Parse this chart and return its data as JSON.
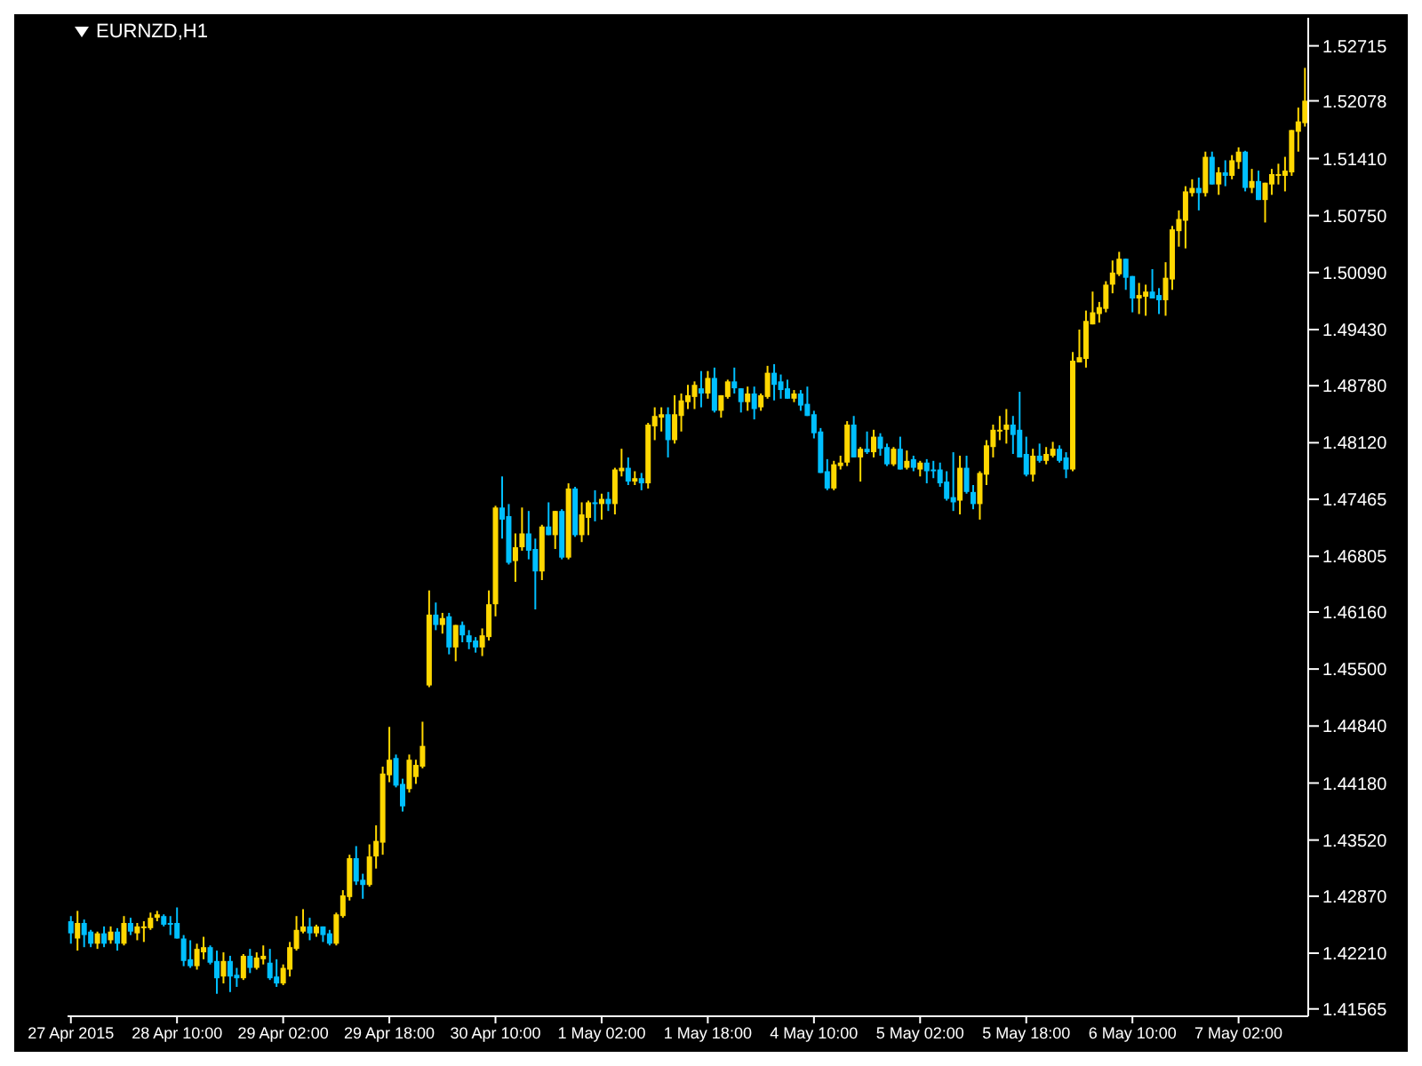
{
  "chart_data": {
    "type": "candlestick",
    "title": "EURNZD,H1",
    "categories": [
      "27 Apr 2015",
      null,
      null,
      null,
      null,
      null,
      null,
      null,
      null,
      null,
      null,
      null,
      null,
      null,
      null,
      null,
      "28 Apr 10:00",
      null,
      null,
      null,
      null,
      null,
      null,
      null,
      null,
      null,
      null,
      null,
      null,
      null,
      null,
      null,
      "29 Apr 02:00",
      null,
      null,
      null,
      null,
      null,
      null,
      null,
      null,
      null,
      null,
      null,
      null,
      null,
      null,
      null,
      "29 Apr 18:00",
      null,
      null,
      null,
      null,
      null,
      null,
      null,
      null,
      null,
      null,
      null,
      null,
      null,
      null,
      null,
      "30 Apr 10:00",
      null,
      null,
      null,
      null,
      null,
      null,
      null,
      null,
      null,
      null,
      null,
      null,
      null,
      null,
      null,
      "1 May 02:00",
      null,
      null,
      null,
      null,
      null,
      null,
      null,
      null,
      null,
      null,
      null,
      null,
      null,
      null,
      null,
      "1 May 18:00",
      null,
      null,
      null,
      null,
      null,
      null,
      null,
      null,
      null,
      null,
      null,
      null,
      null,
      null,
      null,
      "4 May 10:00",
      null,
      null,
      null,
      null,
      null,
      null,
      null,
      null,
      null,
      null,
      null,
      null,
      null,
      null,
      null,
      "5 May 02:00",
      null,
      null,
      null,
      null,
      null,
      null,
      null,
      null,
      null,
      null,
      null,
      null,
      null,
      null,
      null,
      "5 May 18:00",
      null,
      null,
      null,
      null,
      null,
      null,
      null,
      null,
      null,
      null,
      null,
      null,
      null,
      null,
      null,
      "6 May 10:00",
      null,
      null,
      null,
      null,
      null,
      null,
      null,
      null,
      null,
      null,
      null,
      null,
      null,
      null,
      null,
      "7 May 02:00",
      null,
      null,
      null,
      null,
      null,
      null,
      null,
      null,
      null,
      null
    ],
    "ohlc": [
      [
        1.4258,
        1.4264,
        1.4232,
        1.4244
      ],
      [
        1.4238,
        1.427,
        1.4224,
        1.4256
      ],
      [
        1.4256,
        1.426,
        1.4228,
        1.4242
      ],
      [
        1.4246,
        1.4248,
        1.4228,
        1.4232
      ],
      [
        1.4232,
        1.4246,
        1.4226,
        1.4244
      ],
      [
        1.4244,
        1.4252,
        1.4228,
        1.4232
      ],
      [
        1.4236,
        1.4252,
        1.4232,
        1.4246
      ],
      [
        1.4246,
        1.425,
        1.4224,
        1.4232
      ],
      [
        1.4232,
        1.4264,
        1.423,
        1.4256
      ],
      [
        1.4256,
        1.4262,
        1.4242,
        1.4246
      ],
      [
        1.4244,
        1.4256,
        1.4236,
        1.4252
      ],
      [
        1.425,
        1.4258,
        1.4234,
        1.4252
      ],
      [
        1.425,
        1.4268,
        1.4248,
        1.4262
      ],
      [
        1.4262,
        1.427,
        1.4258,
        1.4266
      ],
      [
        1.4264,
        1.4266,
        1.4252,
        1.4254
      ],
      [
        1.4256,
        1.4264,
        1.4242,
        1.4254
      ],
      [
        1.4256,
        1.4274,
        1.4238,
        1.4238
      ],
      [
        1.4238,
        1.4242,
        1.4206,
        1.4212
      ],
      [
        1.4214,
        1.4236,
        1.4204,
        1.4206
      ],
      [
        1.4206,
        1.4232,
        1.4202,
        1.4226
      ],
      [
        1.4222,
        1.424,
        1.4214,
        1.4228
      ],
      [
        1.4228,
        1.423,
        1.4208,
        1.421
      ],
      [
        1.4212,
        1.4224,
        1.4174,
        1.4192
      ],
      [
        1.4194,
        1.4222,
        1.4186,
        1.4212
      ],
      [
        1.4212,
        1.4218,
        1.4176,
        1.4194
      ],
      [
        1.4196,
        1.4204,
        1.4182,
        1.4192
      ],
      [
        1.4192,
        1.422,
        1.419,
        1.4218
      ],
      [
        1.4218,
        1.4226,
        1.4198,
        1.4204
      ],
      [
        1.4204,
        1.4222,
        1.4202,
        1.4216
      ],
      [
        1.4214,
        1.423,
        1.4208,
        1.4218
      ],
      [
        1.421,
        1.4226,
        1.419,
        1.4192
      ],
      [
        1.4194,
        1.4214,
        1.4182,
        1.4186
      ],
      [
        1.4186,
        1.4208,
        1.4184,
        1.4204
      ],
      [
        1.4202,
        1.4234,
        1.4194,
        1.4228
      ],
      [
        1.4226,
        1.4264,
        1.4224,
        1.4248
      ],
      [
        1.4246,
        1.4272,
        1.4244,
        1.4252
      ],
      [
        1.4252,
        1.4262,
        1.4236,
        1.4244
      ],
      [
        1.4244,
        1.4254,
        1.424,
        1.4252
      ],
      [
        1.4252,
        1.4252,
        1.4234,
        1.4242
      ],
      [
        1.4244,
        1.4248,
        1.423,
        1.4232
      ],
      [
        1.4232,
        1.4268,
        1.423,
        1.4266
      ],
      [
        1.4264,
        1.4294,
        1.4262,
        1.4288
      ],
      [
        1.4286,
        1.4335,
        1.4282,
        1.4331
      ],
      [
        1.4331,
        1.4345,
        1.43,
        1.4304
      ],
      [
        1.4306,
        1.4313,
        1.4284,
        1.43
      ],
      [
        1.43,
        1.4347,
        1.4298,
        1.4333
      ],
      [
        1.4333,
        1.4369,
        1.4319,
        1.4351
      ],
      [
        1.4349,
        1.4437,
        1.4335,
        1.4429
      ],
      [
        1.4427,
        1.4483,
        1.4419,
        1.4445
      ],
      [
        1.4447,
        1.4451,
        1.4413,
        1.4415
      ],
      [
        1.4417,
        1.4423,
        1.4385,
        1.4391
      ],
      [
        1.4411,
        1.4451,
        1.4407,
        1.4445
      ],
      [
        1.4425,
        1.4445,
        1.4417,
        1.4439
      ],
      [
        1.4437,
        1.4489,
        1.4435,
        1.4461
      ],
      [
        1.4531,
        1.4641,
        1.4529,
        1.4613
      ],
      [
        1.4613,
        1.4627,
        1.4595,
        1.4601
      ],
      [
        1.4601,
        1.4615,
        1.4591,
        1.4609
      ],
      [
        1.4611,
        1.4615,
        1.4567,
        1.4575
      ],
      [
        1.4575,
        1.4601,
        1.4559,
        1.4601
      ],
      [
        1.4601,
        1.4605,
        1.4581,
        1.4589
      ],
      [
        1.4589,
        1.4595,
        1.4573,
        1.4581
      ],
      [
        1.4583,
        1.4587,
        1.4569,
        1.4575
      ],
      [
        1.4575,
        1.4597,
        1.4565,
        1.4589
      ],
      [
        1.4587,
        1.4641,
        1.4583,
        1.4625
      ],
      [
        1.4625,
        1.4739,
        1.4611,
        1.4737
      ],
      [
        1.4737,
        1.4773,
        1.4701,
        1.4723
      ],
      [
        1.4727,
        1.4741,
        1.4671,
        1.4673
      ],
      [
        1.4675,
        1.4707,
        1.4651,
        1.4691
      ],
      [
        1.4691,
        1.4737,
        1.4687,
        1.4707
      ],
      [
        1.4707,
        1.4733,
        1.4677,
        1.4687
      ],
      [
        1.4689,
        1.4701,
        1.4619,
        1.4663
      ],
      [
        1.4663,
        1.4717,
        1.4653,
        1.4715
      ],
      [
        1.4715,
        1.4743,
        1.4705,
        1.4705
      ],
      [
        1.4705,
        1.4733,
        1.4689,
        1.4733
      ],
      [
        1.4733,
        1.4735,
        1.4677,
        1.4679
      ],
      [
        1.4679,
        1.4765,
        1.4677,
        1.4759
      ],
      [
        1.4759,
        1.4761,
        1.4703,
        1.4705
      ],
      [
        1.4705,
        1.4743,
        1.4697,
        1.4729
      ],
      [
        1.4725,
        1.4745,
        1.4705,
        1.4743
      ],
      [
        1.4743,
        1.4757,
        1.4721,
        1.4741
      ],
      [
        1.4741,
        1.4753,
        1.4723,
        1.4747
      ],
      [
        1.4747,
        1.4755,
        1.4733,
        1.4741
      ],
      [
        1.4741,
        1.4783,
        1.4729,
        1.4781
      ],
      [
        1.4779,
        1.4805,
        1.4773,
        1.4783
      ],
      [
        1.4783,
        1.4795,
        1.4763,
        1.4767
      ],
      [
        1.4767,
        1.4779,
        1.4763,
        1.4771
      ],
      [
        1.4771,
        1.4777,
        1.4757,
        1.4765
      ],
      [
        1.4765,
        1.4835,
        1.4759,
        1.4833
      ],
      [
        1.4831,
        1.4853,
        1.4815,
        1.4843
      ],
      [
        1.4841,
        1.4853,
        1.4825,
        1.4845
      ],
      [
        1.4845,
        1.4853,
        1.4795,
        1.4815
      ],
      [
        1.4815,
        1.4867,
        1.4811,
        1.4845
      ],
      [
        1.4843,
        1.4869,
        1.4825,
        1.4861
      ],
      [
        1.4859,
        1.4879,
        1.4851,
        1.4867
      ],
      [
        1.4865,
        1.4883,
        1.4851,
        1.4879
      ],
      [
        1.4875,
        1.4895,
        1.4853,
        1.4869
      ],
      [
        1.4869,
        1.4895,
        1.4863,
        1.4887
      ],
      [
        1.4887,
        1.4899,
        1.4847,
        1.4849
      ],
      [
        1.4849,
        1.4867,
        1.4841,
        1.4867
      ],
      [
        1.4865,
        1.4885,
        1.4863,
        1.4883
      ],
      [
        1.4883,
        1.4899,
        1.4869,
        1.4875
      ],
      [
        1.4875,
        1.4875,
        1.4847,
        1.4859
      ],
      [
        1.4859,
        1.4877,
        1.4849,
        1.4869
      ],
      [
        1.4869,
        1.4877,
        1.4839,
        1.4851
      ],
      [
        1.4853,
        1.4869,
        1.4849,
        1.4867
      ],
      [
        1.4865,
        1.4901,
        1.4863,
        1.4893
      ],
      [
        1.4893,
        1.4903,
        1.4861,
        1.4879
      ],
      [
        1.4883,
        1.4891,
        1.4863,
        1.4873
      ],
      [
        1.4875,
        1.4885,
        1.4863,
        1.4863
      ],
      [
        1.4863,
        1.4873,
        1.4859,
        1.4869
      ],
      [
        1.4869,
        1.4873,
        1.4849,
        1.4855
      ],
      [
        1.4857,
        1.4877,
        1.4843,
        1.4843
      ],
      [
        1.4845,
        1.4849,
        1.4817,
        1.4823
      ],
      [
        1.4825,
        1.4829,
        1.4777,
        1.4777
      ],
      [
        1.4779,
        1.4793,
        1.4757,
        1.4759
      ],
      [
        1.4759,
        1.4791,
        1.4757,
        1.4787
      ],
      [
        1.4785,
        1.4797,
        1.4781,
        1.4789
      ],
      [
        1.4789,
        1.4837,
        1.4785,
        1.4833
      ],
      [
        1.4833,
        1.4843,
        1.4795,
        1.4795
      ],
      [
        1.4795,
        1.4807,
        1.4767,
        1.4805
      ],
      [
        1.4805,
        1.4825,
        1.4799,
        1.4801
      ],
      [
        1.4801,
        1.4827,
        1.4795,
        1.4819
      ],
      [
        1.4819,
        1.4823,
        1.4797,
        1.4805
      ],
      [
        1.4807,
        1.4811,
        1.4785,
        1.4787
      ],
      [
        1.4787,
        1.4807,
        1.4785,
        1.4805
      ],
      [
        1.4805,
        1.4819,
        1.4781,
        1.4781
      ],
      [
        1.4783,
        1.4803,
        1.4781,
        1.4791
      ],
      [
        1.4793,
        1.4797,
        1.4779,
        1.4783
      ],
      [
        1.4781,
        1.4791,
        1.4773,
        1.4789
      ],
      [
        1.4789,
        1.4793,
        1.4765,
        1.4779
      ],
      [
        1.4781,
        1.4791,
        1.4771,
        1.4779
      ],
      [
        1.4781,
        1.4789,
        1.4761,
        1.4765
      ],
      [
        1.4767,
        1.4779,
        1.4745,
        1.4747
      ],
      [
        1.4749,
        1.4801,
        1.4733,
        1.4743
      ],
      [
        1.4745,
        1.4797,
        1.4729,
        1.4783
      ],
      [
        1.4783,
        1.4797,
        1.4753,
        1.4755
      ],
      [
        1.4755,
        1.4763,
        1.4735,
        1.4741
      ],
      [
        1.4741,
        1.4779,
        1.4723,
        1.4777
      ],
      [
        1.4775,
        1.4815,
        1.4763,
        1.4809
      ],
      [
        1.4807,
        1.4833,
        1.4795,
        1.4827
      ],
      [
        1.4825,
        1.4843,
        1.4815,
        1.4827
      ],
      [
        1.4827,
        1.4851,
        1.4811,
        1.4833
      ],
      [
        1.4833,
        1.4843,
        1.4799,
        1.4821
      ],
      [
        1.4827,
        1.4871,
        1.4795,
        1.4795
      ],
      [
        1.4799,
        1.4819,
        1.4773,
        1.4775
      ],
      [
        1.4775,
        1.4805,
        1.4767,
        1.4797
      ],
      [
        1.4797,
        1.4811,
        1.4789,
        1.4791
      ],
      [
        1.4791,
        1.4807,
        1.4787,
        1.4799
      ],
      [
        1.4797,
        1.4813,
        1.4795,
        1.4805
      ],
      [
        1.4805,
        1.4809,
        1.4789,
        1.4791
      ],
      [
        1.4795,
        1.4801,
        1.4771,
        1.4781
      ],
      [
        1.4781,
        1.4917,
        1.4779,
        1.4907
      ],
      [
        1.4905,
        1.4943,
        1.4905,
        1.4911
      ],
      [
        1.4909,
        1.4965,
        1.4899,
        1.4953
      ],
      [
        1.4949,
        1.4987,
        1.4949,
        1.4963
      ],
      [
        1.4961,
        1.4975,
        1.4951,
        1.4969
      ],
      [
        1.4967,
        1.4999,
        1.4963,
        1.4995
      ],
      [
        1.4995,
        1.5023,
        1.4985,
        1.5009
      ],
      [
        1.5007,
        1.5033,
        1.5005,
        1.5025
      ],
      [
        1.5025,
        1.5025,
        1.4989,
        1.5003
      ],
      [
        1.5005,
        1.5005,
        1.4963,
        1.4979
      ],
      [
        1.4979,
        1.4997,
        1.4961,
        1.4983
      ],
      [
        1.4981,
        1.4995,
        1.4959,
        1.4987
      ],
      [
        1.4987,
        1.5013,
        1.4979,
        1.4979
      ],
      [
        1.4983,
        1.4991,
        1.4961,
        1.4977
      ],
      [
        1.4977,
        1.5021,
        1.4959,
        1.5003
      ],
      [
        1.5001,
        1.5063,
        1.4989,
        1.5059
      ],
      [
        1.5057,
        1.5081,
        1.5039,
        1.5071
      ],
      [
        1.5069,
        1.5109,
        1.5037,
        1.5103
      ],
      [
        1.5101,
        1.5117,
        1.5097,
        1.5107
      ],
      [
        1.5107,
        1.5119,
        1.5081,
        1.5101
      ],
      [
        1.5101,
        1.5149,
        1.5097,
        1.5143
      ],
      [
        1.5143,
        1.5149,
        1.5111,
        1.5111
      ],
      [
        1.5111,
        1.5131,
        1.5099,
        1.5125
      ],
      [
        1.5125,
        1.5139,
        1.5109,
        1.5121
      ],
      [
        1.5121,
        1.5145,
        1.5117,
        1.5139
      ],
      [
        1.5137,
        1.5154,
        1.5129,
        1.5149
      ],
      [
        1.5149,
        1.515,
        1.5103,
        1.5107
      ],
      [
        1.5107,
        1.5129,
        1.5101,
        1.5115
      ],
      [
        1.5115,
        1.5127,
        1.5093,
        1.5093
      ],
      [
        1.5093,
        1.5113,
        1.5067,
        1.5113
      ],
      [
        1.5111,
        1.5129,
        1.5099,
        1.5123
      ],
      [
        1.5121,
        1.5135,
        1.5111,
        1.5123
      ],
      [
        1.5121,
        1.5143,
        1.5103,
        1.5127
      ],
      [
        1.5125,
        1.5174,
        1.5121,
        1.5174
      ],
      [
        1.5172,
        1.52,
        1.5149,
        1.5184
      ],
      [
        1.5182,
        1.5246,
        1.5178,
        1.5208
      ]
    ],
    "colors": [
      "#00bfff",
      "#ffd700",
      "#00bfff",
      "#00bfff",
      "#ffd700",
      "#00bfff",
      "#ffd700",
      "#00bfff",
      "#ffd700",
      "#00bfff",
      "#ffd700",
      "#ffd700",
      "#ffd700",
      "#ffd700",
      "#00bfff",
      "#00bfff",
      "#00bfff",
      "#00bfff",
      "#00bfff",
      "#ffd700",
      "#ffd700",
      "#00bfff",
      "#00bfff",
      "#ffd700",
      "#00bfff",
      "#00bfff",
      "#ffd700",
      "#00bfff",
      "#ffd700",
      "#ffd700",
      "#00bfff",
      "#00bfff",
      "#ffd700",
      "#ffd700",
      "#ffd700",
      "#ffd700",
      "#00bfff",
      "#ffd700",
      "#00bfff",
      "#00bfff",
      "#ffd700",
      "#ffd700",
      "#ffd700",
      "#00bfff",
      "#00bfff",
      "#ffd700",
      "#ffd700",
      "#ffd700",
      "#ffd700",
      "#00bfff",
      "#00bfff",
      "#ffd700",
      "#ffd700",
      "#ffd700",
      "#ffd700",
      "#00bfff",
      "#ffd700",
      "#00bfff",
      "#ffd700",
      "#00bfff",
      "#00bfff",
      "#00bfff",
      "#ffd700",
      "#ffd700",
      "#ffd700",
      "#00bfff",
      "#00bfff",
      "#ffd700",
      "#ffd700",
      "#00bfff",
      "#00bfff",
      "#ffd700",
      "#00bfff",
      "#ffd700",
      "#00bfff",
      "#ffd700",
      "#00bfff",
      "#ffd700",
      "#ffd700",
      "#00bfff",
      "#ffd700",
      "#00bfff",
      "#ffd700",
      "#ffd700",
      "#00bfff",
      "#ffd700",
      "#00bfff",
      "#ffd700",
      "#ffd700",
      "#ffd700",
      "#00bfff",
      "#ffd700",
      "#ffd700",
      "#ffd700",
      "#ffd700",
      "#00bfff",
      "#ffd700",
      "#00bfff",
      "#ffd700",
      "#ffd700",
      "#00bfff",
      "#00bfff",
      "#ffd700",
      "#00bfff",
      "#ffd700",
      "#ffd700",
      "#00bfff",
      "#00bfff",
      "#00bfff",
      "#ffd700",
      "#00bfff",
      "#00bfff",
      "#00bfff",
      "#00bfff",
      "#00bfff",
      "#ffd700",
      "#ffd700",
      "#ffd700",
      "#00bfff",
      "#ffd700",
      "#00bfff",
      "#ffd700",
      "#00bfff",
      "#00bfff",
      "#ffd700",
      "#00bfff",
      "#ffd700",
      "#00bfff",
      "#ffd700",
      "#00bfff",
      "#00bfff",
      "#00bfff",
      "#00bfff",
      "#00bfff",
      "#ffd700",
      "#00bfff",
      "#00bfff",
      "#ffd700",
      "#ffd700",
      "#ffd700",
      "#ffd700",
      "#ffd700",
      "#00bfff",
      "#00bfff",
      "#00bfff",
      "#ffd700",
      "#00bfff",
      "#ffd700",
      "#ffd700",
      "#00bfff",
      "#00bfff",
      "#ffd700",
      "#ffd700",
      "#ffd700",
      "#ffd700",
      "#ffd700",
      "#ffd700",
      "#ffd700",
      "#ffd700",
      "#00bfff",
      "#00bfff",
      "#ffd700",
      "#ffd700",
      "#00bfff",
      "#00bfff",
      "#ffd700",
      "#ffd700",
      "#ffd700",
      "#ffd700",
      "#ffd700",
      "#00bfff",
      "#ffd700",
      "#00bfff",
      "#ffd700",
      "#00bfff",
      "#ffd700",
      "#ffd700",
      "#00bfff",
      "#ffd700",
      "#00bfff",
      "#ffd700",
      "#ffd700",
      "#ffd700",
      "#ffd700",
      "#ffd700",
      "#ffd700",
      "#ffd700"
    ],
    "ylim": [
      1.4148,
      1.5304
    ],
    "yticks": [
      {
        "value": 1.41565,
        "label": "1.41565"
      },
      {
        "value": 1.4221,
        "label": "1.42210"
      },
      {
        "value": 1.4287,
        "label": "1.42870"
      },
      {
        "value": 1.4352,
        "label": "1.43520"
      },
      {
        "value": 1.4418,
        "label": "1.44180"
      },
      {
        "value": 1.4484,
        "label": "1.44840"
      },
      {
        "value": 1.455,
        "label": "1.45500"
      },
      {
        "value": 1.4616,
        "label": "1.46160"
      },
      {
        "value": 1.46805,
        "label": "1.46805"
      },
      {
        "value": 1.47465,
        "label": "1.47465"
      },
      {
        "value": 1.4812,
        "label": "1.48120"
      },
      {
        "value": 1.4878,
        "label": "1.48780"
      },
      {
        "value": 1.4943,
        "label": "1.49430"
      },
      {
        "value": 1.5009,
        "label": "1.50090"
      },
      {
        "value": 1.5075,
        "label": "1.50750"
      },
      {
        "value": 1.5141,
        "label": "1.51410"
      },
      {
        "value": 1.52078,
        "label": "1.52078"
      },
      {
        "value": 1.52715,
        "label": "1.52715"
      }
    ]
  }
}
